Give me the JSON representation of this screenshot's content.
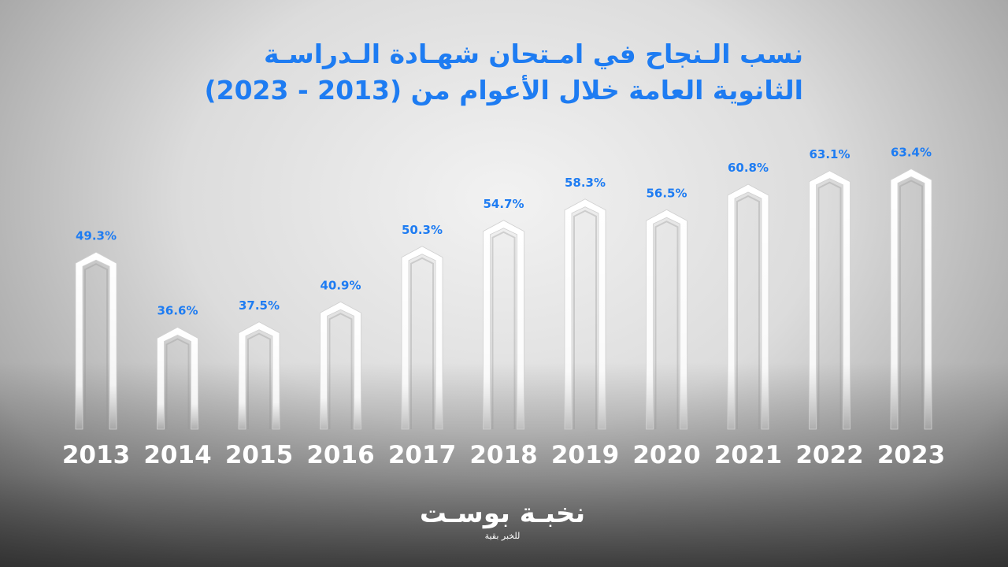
{
  "title_line1": "نسب الـنجاح في امـتحان شهـادة الـدراسـة",
  "title_line2": "الثانوية العامة خلال الأعوام من (2013 - 2023)",
  "logo": {
    "name": "نخبـة بوسـت",
    "tagline": "للخبر بقية"
  },
  "colors": {
    "accent": "#1e7cf2",
    "bar": "#ffffff",
    "year_label": "#ffffff"
  },
  "chart_data": {
    "type": "bar",
    "title": "نسب الـنجاح في امـتحان شهـادة الـدراسـة الثانوية العامة خلال الأعوام من (2013 - 2023)",
    "categories": [
      "2013",
      "2014",
      "2015",
      "2016",
      "2017",
      "2018",
      "2019",
      "2020",
      "2021",
      "2022",
      "2023"
    ],
    "values": [
      49.3,
      36.6,
      37.5,
      40.9,
      50.3,
      54.7,
      58.3,
      56.5,
      60.8,
      63.1,
      63.4
    ],
    "value_labels": [
      "49.3%",
      "36.6%",
      "37.5%",
      "40.9%",
      "50.3%",
      "54.7%",
      "58.3%",
      "56.5%",
      "60.8%",
      "63.1%",
      "63.4%"
    ],
    "xlabel": "",
    "ylabel": "",
    "grid": false,
    "legend": "none"
  }
}
